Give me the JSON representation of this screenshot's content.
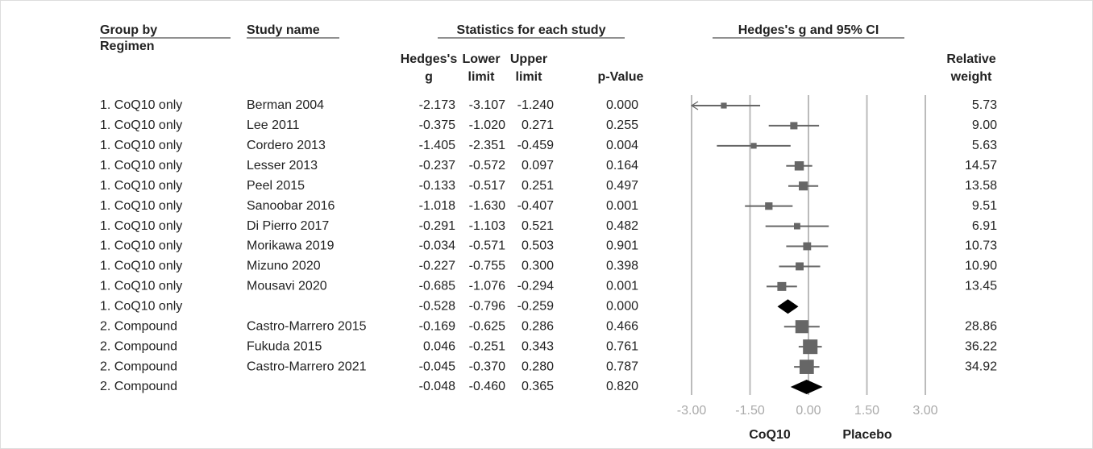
{
  "chart_data": {
    "type": "forest",
    "headers": {
      "group": [
        "Group by",
        "Regimen"
      ],
      "study": "Study name",
      "stats": "Statistics for each study",
      "plot": "Hedges's g and 95% CI"
    },
    "groups": [
      "1. CoQ10 only",
      "1. CoQ10 only",
      "1. CoQ10 only",
      "1. CoQ10 only",
      "1. CoQ10 only",
      "1. CoQ10 only",
      "1. CoQ10 only",
      "1. CoQ10 only",
      "1. CoQ10 only",
      "1. CoQ10 only",
      "1. CoQ10 only",
      "2. Compound",
      "2. Compound",
      "2. Compound",
      "2. Compound"
    ],
    "studies": [
      "Berman 2004",
      "Lee 2011",
      "Cordero 2013",
      "Lesser 2013",
      "Peel 2015",
      "Sanoobar 2016",
      "Di Pierro 2017",
      "Morikawa 2019",
      "Mizuno 2020",
      "Mousavi 2020",
      null,
      "Castro-Marrero 2015",
      "Fukuda 2015",
      "Castro-Marrero 2021",
      null
    ],
    "columns": [
      {
        "name": [
          "Hedges's",
          "g"
        ],
        "values": [
          -2.173,
          -0.375,
          -1.405,
          -0.237,
          -0.133,
          -1.018,
          -0.291,
          -0.034,
          -0.227,
          -0.685,
          -0.528,
          -0.169,
          0.046,
          -0.045,
          -0.048
        ],
        "value_labels": [
          "-2.173",
          "-0.375",
          "-1.405",
          "-0.237",
          "-0.133",
          "-1.018",
          "-0.291",
          "-0.034",
          "-0.227",
          "-0.685",
          "-0.528",
          "-0.169",
          "0.046",
          "-0.045",
          "-0.048"
        ]
      },
      {
        "name": [
          "Lower",
          "limit"
        ],
        "values": [
          -3.107,
          -1.02,
          -2.351,
          -0.572,
          -0.517,
          -1.63,
          -1.103,
          -0.571,
          -0.755,
          -1.076,
          -0.796,
          -0.625,
          -0.251,
          -0.37,
          -0.46
        ],
        "value_labels": [
          "-3.107",
          "-1.020",
          "-2.351",
          "-0.572",
          "-0.517",
          "-1.630",
          "-1.103",
          "-0.571",
          "-0.755",
          "-1.076",
          "-0.796",
          "-0.625",
          "-0.251",
          "-0.370",
          "-0.460"
        ]
      },
      {
        "name": [
          "Upper",
          "limit"
        ],
        "values": [
          -1.24,
          0.271,
          -0.459,
          0.097,
          0.251,
          -0.407,
          0.521,
          0.503,
          0.3,
          -0.294,
          -0.259,
          0.286,
          0.343,
          0.28,
          0.365
        ],
        "value_labels": [
          "-1.240",
          "0.271",
          "-0.459",
          "0.097",
          "0.251",
          "-0.407",
          "0.521",
          "0.503",
          "0.300",
          "-0.294",
          "-0.259",
          "0.286",
          "0.343",
          "0.280",
          "0.365"
        ]
      },
      {
        "name": [
          "p-Value"
        ],
        "values": [
          0,
          0.255,
          0.004,
          0.164,
          0.497,
          0.001,
          0.482,
          0.901,
          0.398,
          0.001,
          0,
          0.466,
          0.761,
          0.787,
          0.82
        ],
        "value_labels": [
          "0.000",
          "0.255",
          "0.004",
          "0.164",
          "0.497",
          "0.001",
          "0.482",
          "0.901",
          "0.398",
          "0.001",
          "0.000",
          "0.466",
          "0.761",
          "0.787",
          "0.820"
        ]
      }
    ],
    "weight": {
      "name": [
        "Relative",
        "weight"
      ],
      "values": [
        5.73,
        9,
        5.63,
        14.57,
        13.58,
        9.51,
        6.91,
        10.73,
        10.9,
        13.45,
        null,
        28.86,
        36.22,
        34.92,
        null
      ],
      "value_labels": [
        "5.73",
        "9.00",
        "5.63",
        "14.57",
        "13.58",
        "9.51",
        "6.91",
        "10.73",
        "10.90",
        "13.45",
        null,
        "28.86",
        "36.22",
        "34.92",
        null
      ]
    },
    "xlim": [
      -3,
      3
    ],
    "xticks": [
      {
        "value": -3,
        "label": "-3.00"
      },
      {
        "value": -1.5,
        "label": "-1.50"
      },
      {
        "value": 0,
        "label": "0.00"
      },
      {
        "value": 1.5,
        "label": "1.50"
      },
      {
        "value": 3,
        "label": "3.00"
      }
    ],
    "grid": true,
    "x_left_label": "CoQ10",
    "x_right_label": "Placebo",
    "marker_color": "#666666",
    "summary_color": "#000000"
  }
}
